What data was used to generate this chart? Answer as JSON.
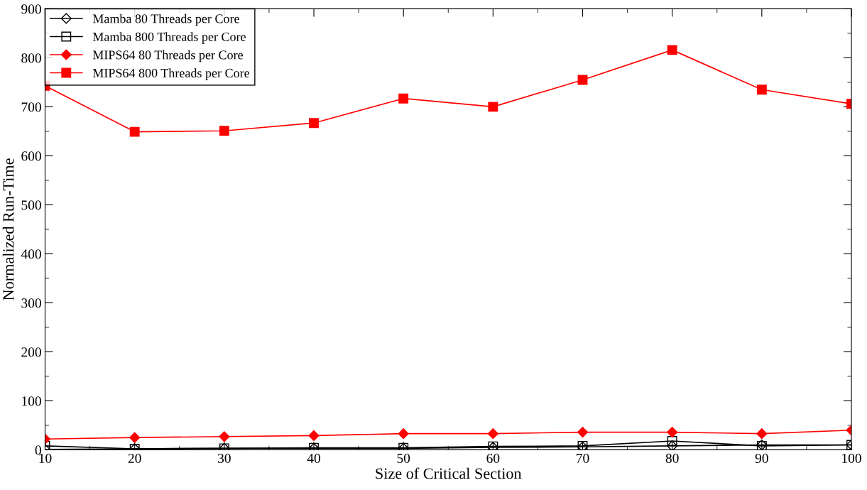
{
  "chart_data": {
    "type": "line",
    "xlabel": "Size of Critical Section",
    "ylabel": "Normalized Run-Time",
    "x": [
      10,
      20,
      30,
      40,
      50,
      60,
      70,
      80,
      90,
      100
    ],
    "xlim": [
      10,
      100
    ],
    "xticks": [
      10,
      20,
      30,
      40,
      50,
      60,
      70,
      80,
      90,
      100
    ],
    "ylim": [
      0,
      900
    ],
    "yticks": [
      0,
      100,
      200,
      300,
      400,
      500,
      600,
      700,
      800,
      900
    ],
    "grid": false,
    "legend": "top left",
    "line_style": "solid",
    "series": [
      {
        "name": "Mamba 80 Threads per Core",
        "color": "#000000",
        "marker": "diamond",
        "values": [
          1,
          2,
          3,
          3,
          3,
          5,
          6,
          8,
          10,
          10
        ]
      },
      {
        "name": "Mamba 800 Threads per Core",
        "color": "#000000",
        "marker": "square",
        "values": [
          8,
          2,
          3,
          4,
          4,
          7,
          8,
          18,
          8,
          10
        ]
      },
      {
        "name": "MIPS64 80 Threads per Core",
        "color": "#ff0000",
        "marker": "diamond",
        "values": [
          22,
          25,
          27,
          29,
          33,
          33,
          36,
          36,
          33,
          40
        ]
      },
      {
        "name": "MIPS64 800 Threads per Core",
        "color": "#ff0000",
        "marker": "square",
        "values": [
          743,
          649,
          651,
          667,
          717,
          700,
          755,
          816,
          735,
          706
        ]
      }
    ]
  }
}
